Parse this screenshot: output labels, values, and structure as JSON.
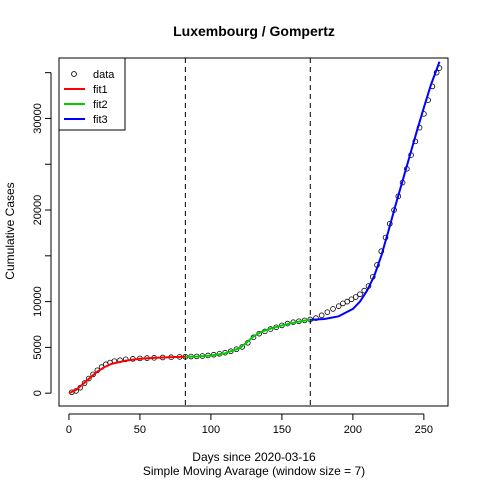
{
  "chart_data": {
    "type": "scatter",
    "title": "Luxembourg / Gompertz",
    "xlabel": "Days since 2020-03-16",
    "xlabel2": "Simple Moving Avarage (window size = 7)",
    "ylabel": "Cumulative Cases",
    "xlim": [
      -7,
      267
    ],
    "ylim": [
      -1400,
      36600
    ],
    "x_ticks": [
      0,
      50,
      100,
      150,
      200,
      250
    ],
    "y_ticks": [
      0,
      5000,
      10000,
      15000,
      20000,
      25000,
      30000,
      35000
    ],
    "y_tick_labels": [
      "0",
      "5000",
      "10000",
      "",
      "20000",
      "",
      "30000",
      ""
    ],
    "split_days": [
      82,
      170
    ],
    "legend": {
      "position": "top-left",
      "entries": [
        {
          "label": "data",
          "kind": "point",
          "color": "#000000"
        },
        {
          "label": "fit1",
          "kind": "line",
          "color": "#ff0000"
        },
        {
          "label": "fit2",
          "kind": "line",
          "color": "#00cd00"
        },
        {
          "label": "fit3",
          "kind": "line",
          "color": "#0000ff"
        }
      ]
    },
    "data_points": {
      "x": [
        2,
        5,
        8,
        11,
        14,
        17,
        20,
        23,
        26,
        29,
        32,
        36,
        40,
        45,
        50,
        55,
        60,
        66,
        72,
        78,
        82,
        86,
        90,
        94,
        98,
        102,
        106,
        110,
        114,
        118,
        122,
        126,
        130,
        134,
        138,
        142,
        146,
        150,
        154,
        158,
        162,
        166,
        170,
        174,
        178,
        182,
        186,
        190,
        193,
        196,
        199,
        202,
        205,
        208,
        211,
        214,
        217,
        220,
        223,
        226,
        229,
        232,
        235,
        238,
        241,
        244,
        247,
        250,
        253,
        256,
        259,
        261
      ],
      "y": [
        100,
        250,
        600,
        1100,
        1600,
        2050,
        2500,
        2850,
        3150,
        3350,
        3500,
        3600,
        3700,
        3750,
        3800,
        3830,
        3860,
        3900,
        3930,
        3960,
        3980,
        4000,
        4020,
        4060,
        4120,
        4200,
        4300,
        4420,
        4580,
        4800,
        5050,
        5500,
        6100,
        6500,
        6750,
        7000,
        7200,
        7400,
        7600,
        7750,
        7850,
        7950,
        8050,
        8200,
        8500,
        8850,
        9200,
        9500,
        9800,
        10000,
        10250,
        10500,
        10800,
        11200,
        11700,
        12700,
        14000,
        15500,
        17000,
        18500,
        20000,
        21500,
        23000,
        24500,
        26000,
        27500,
        29000,
        30500,
        32000,
        33500,
        35000,
        35500
      ]
    },
    "fits": [
      {
        "name": "fit1",
        "color": "#ff0000",
        "x": [
          0,
          5,
          10,
          15,
          20,
          25,
          30,
          40,
          50,
          60,
          70,
          82
        ],
        "y": [
          0,
          350,
          1000,
          1700,
          2350,
          2850,
          3200,
          3550,
          3750,
          3850,
          3930,
          3980
        ]
      },
      {
        "name": "fit2",
        "color": "#00cd00",
        "x": [
          82,
          90,
          100,
          110,
          120,
          125,
          130,
          135,
          140,
          150,
          160,
          170
        ],
        "y": [
          3980,
          4000,
          4100,
          4350,
          4900,
          5500,
          6200,
          6650,
          6950,
          7400,
          7750,
          8050
        ]
      },
      {
        "name": "fit3",
        "color": "#0000ff",
        "x": [
          170,
          180,
          190,
          200,
          205,
          210,
          215,
          220,
          225,
          230,
          235,
          240,
          245,
          250,
          255,
          261
        ],
        "y": [
          8000,
          8100,
          8400,
          9200,
          10000,
          11200,
          12800,
          15000,
          17700,
          20500,
          23200,
          25900,
          28600,
          31200,
          33700,
          36200
        ]
      }
    ]
  }
}
